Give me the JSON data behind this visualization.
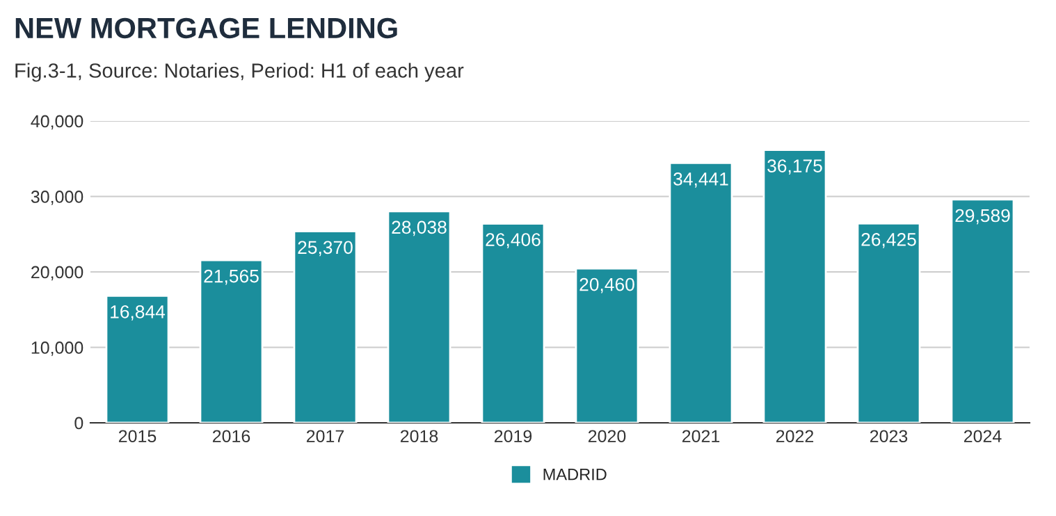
{
  "chart_data": {
    "type": "bar",
    "title": "NEW MORTGAGE LENDING",
    "subtitle": "Fig.3-1, Source: Notaries, Period: H1 of each year",
    "categories": [
      "2015",
      "2016",
      "2017",
      "2018",
      "2019",
      "2020",
      "2021",
      "2022",
      "2023",
      "2024"
    ],
    "series": [
      {
        "name": "MADRID",
        "color": "#1b8e9c",
        "values": [
          16844,
          21565,
          25370,
          28038,
          26406,
          20460,
          34441,
          36175,
          26425,
          29589
        ]
      }
    ],
    "value_labels": [
      "16,844",
      "21,565",
      "25,370",
      "28,038",
      "26,406",
      "20,460",
      "34,441",
      "36,175",
      "26,425",
      "29,589"
    ],
    "ylim": [
      0,
      40000
    ],
    "yticks": [
      {
        "value": 0,
        "label": "0"
      },
      {
        "value": 10000,
        "label": "10,000"
      },
      {
        "value": 20000,
        "label": "20,000"
      },
      {
        "value": 30000,
        "label": "30,000"
      },
      {
        "value": 40000,
        "label": "40,000"
      }
    ],
    "grid": "y",
    "legend": "bottom"
  }
}
